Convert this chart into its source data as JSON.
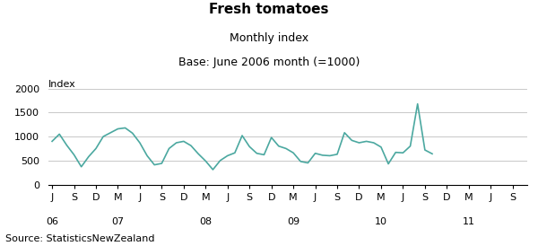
{
  "title": "Fresh tomatoes",
  "subtitle1": "Monthly index",
  "subtitle2": "Base: June 2006 month (=1000)",
  "index_label": "Index",
  "source": "Source: StatisticsNewZealand",
  "ylim": [
    0,
    2000
  ],
  "yticks": [
    0,
    500,
    1000,
    1500,
    2000
  ],
  "line_color": "#4BA8A0",
  "line_width": 1.2,
  "background_color": "#ffffff",
  "grid_color": "#c8c8c8",
  "values": [
    900,
    1050,
    820,
    620,
    370,
    580,
    750,
    1000,
    1080,
    1160,
    1180,
    1070,
    870,
    600,
    410,
    440,
    750,
    870,
    900,
    810,
    640,
    490,
    310,
    500,
    600,
    660,
    1020,
    790,
    650,
    620,
    980,
    800,
    750,
    660,
    480,
    450,
    650,
    610,
    600,
    630,
    1080,
    920,
    870,
    900,
    870,
    780,
    430,
    670,
    660,
    800,
    1680,
    720,
    640
  ],
  "month_tick_positions": [
    0,
    3,
    6,
    9,
    12,
    15,
    18,
    21,
    24,
    27,
    30,
    33,
    36,
    39,
    42,
    45,
    48,
    51,
    54,
    57,
    60,
    63
  ],
  "month_tick_labels": [
    "J",
    "S",
    "D",
    "M",
    "J",
    "S",
    "D",
    "M",
    "J",
    "S",
    "D",
    "M",
    "J",
    "S",
    "D",
    "M",
    "J",
    "S",
    "D",
    "M",
    "J",
    "S"
  ],
  "year_tick_positions": [
    0,
    9,
    21,
    33,
    45,
    57
  ],
  "year_tick_labels": [
    "06",
    "07",
    "08",
    "09",
    "10",
    "11"
  ],
  "title_fontsize": 11,
  "subtitle_fontsize": 9,
  "tick_fontsize": 8,
  "source_fontsize": 8
}
